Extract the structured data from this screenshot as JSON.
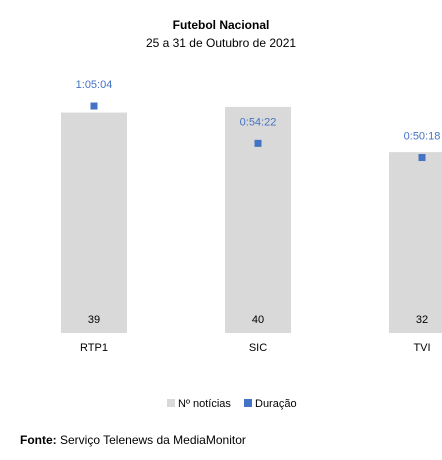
{
  "chart_data": {
    "type": "bar",
    "title": "Futebol Nacional",
    "subtitle": "25 a 31 de Outubro de 2021",
    "categories": [
      "RTP1",
      "SIC",
      "TVI"
    ],
    "series": [
      {
        "name": "Nº notícias",
        "kind": "bar",
        "values": [
          39,
          40,
          32
        ],
        "color": "#d9d9d9"
      },
      {
        "name": "Duração",
        "kind": "marker",
        "values": [
          "1:05:04",
          "0:54:22",
          "0:50:18"
        ],
        "color": "#4472c4"
      }
    ],
    "ylim_count": [
      0,
      46
    ],
    "ylim_duration_seconds": [
      0,
      4472
    ],
    "grid": false,
    "legend": "bottom",
    "label_color": "#4472c4"
  },
  "source": {
    "prefix": "Fonte:",
    "text": "Serviço Telenews da MediaMonitor"
  }
}
